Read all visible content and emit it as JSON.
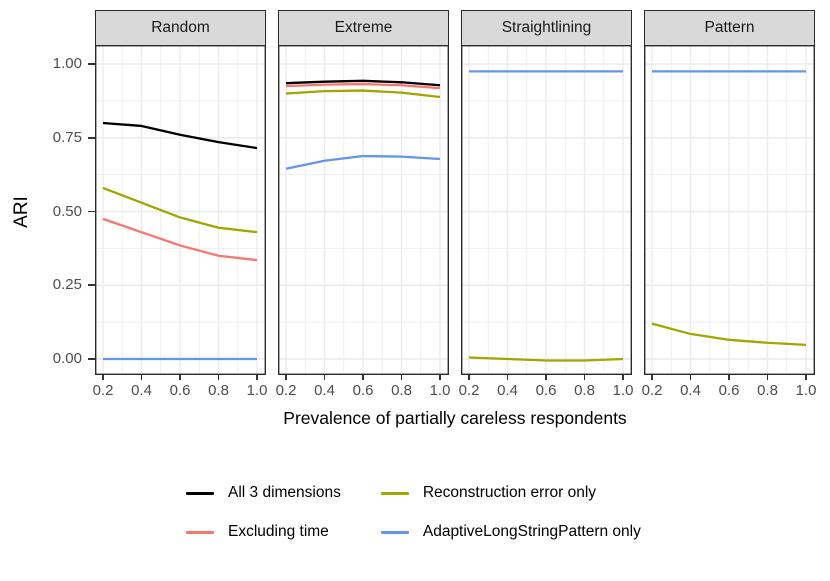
{
  "chart_data": {
    "type": "line",
    "title": "",
    "xlabel": "Prevalence of partially careless respondents",
    "ylabel": "ARI",
    "x": [
      0.2,
      0.4,
      0.6,
      0.8,
      1.0
    ],
    "xlim": [
      0.2,
      1.0
    ],
    "ylim": [
      0.0,
      1.0
    ],
    "xtick_labels": [
      "0.2",
      "0.4",
      "0.6",
      "0.8",
      "1.0"
    ],
    "ytick_labels": [
      "1.00",
      "0.75",
      "0.50",
      "0.25",
      "0.00"
    ],
    "ytick_values": [
      1.0,
      0.75,
      0.5,
      0.25,
      0.0
    ],
    "grid": "major+minor",
    "legend_position": "bottom",
    "legend": [
      {
        "name": "All 3 dimensions",
        "color": "#000000"
      },
      {
        "name": "Excluding time",
        "color": "#F8766D"
      },
      {
        "name": "Reconstruction error only",
        "color": "#A3A500"
      },
      {
        "name": "AdaptiveLongStringPattern only",
        "color": "#6495ED"
      }
    ],
    "panels": [
      {
        "label": "Random",
        "series": [
          {
            "name": "Excluding time",
            "color": "#F8766D",
            "values": [
              0.475,
              0.43,
              0.385,
              0.35,
              0.335
            ]
          },
          {
            "name": "Reconstruction error only",
            "color": "#A3A500",
            "values": [
              0.58,
              0.53,
              0.48,
              0.445,
              0.43
            ]
          },
          {
            "name": "AdaptiveLongStringPattern only",
            "color": "#6495ED",
            "values": [
              0.0,
              0.0,
              0.0,
              0.0,
              0.0
            ]
          },
          {
            "name": "All 3 dimensions",
            "color": "#000000",
            "values": [
              0.8,
              0.79,
              0.76,
              0.735,
              0.715
            ]
          }
        ]
      },
      {
        "label": "Extreme",
        "series": [
          {
            "name": "Excluding time",
            "color": "#F8766D",
            "values": [
              0.925,
              0.93,
              0.932,
              0.928,
              0.918
            ]
          },
          {
            "name": "Reconstruction error only",
            "color": "#A3A500",
            "values": [
              0.9,
              0.908,
              0.91,
              0.903,
              0.888
            ]
          },
          {
            "name": "AdaptiveLongStringPattern only",
            "color": "#6495ED",
            "values": [
              0.645,
              0.672,
              0.688,
              0.686,
              0.678
            ]
          },
          {
            "name": "All 3 dimensions",
            "color": "#000000",
            "values": [
              0.935,
              0.94,
              0.943,
              0.938,
              0.928
            ]
          }
        ]
      },
      {
        "label": "Straightlining",
        "series": [
          {
            "name": "Reconstruction error only",
            "color": "#A3A500",
            "values": [
              0.005,
              0.0,
              -0.005,
              -0.005,
              0.0
            ]
          },
          {
            "name": "AdaptiveLongStringPattern only",
            "color": "#6495ED",
            "values": [
              0.975,
              0.975,
              0.975,
              0.975,
              0.975
            ]
          }
        ]
      },
      {
        "label": "Pattern",
        "series": [
          {
            "name": "Reconstruction error only",
            "color": "#A3A500",
            "values": [
              0.12,
              0.085,
              0.065,
              0.055,
              0.048
            ]
          },
          {
            "name": "AdaptiveLongStringPattern only",
            "color": "#6495ED",
            "values": [
              0.975,
              0.975,
              0.975,
              0.975,
              0.975
            ]
          }
        ]
      }
    ],
    "style": {
      "strip_fill": "#D9D9D9",
      "panel_border": "#2B2B2B",
      "grid_color": "#EBEBEB",
      "tick_label_color": "#4D4D4D",
      "axis_title_color": "#000000"
    }
  }
}
